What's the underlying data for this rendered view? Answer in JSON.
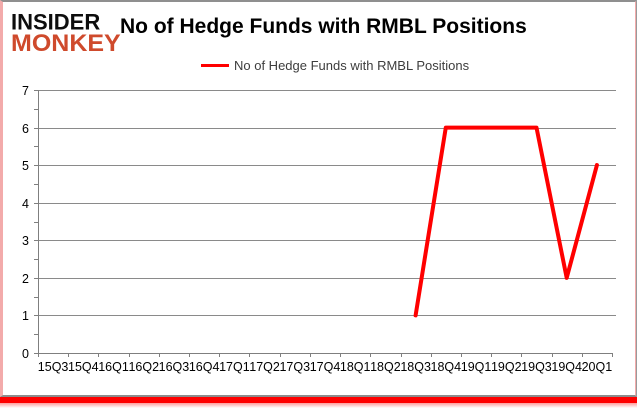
{
  "logo": {
    "line1": "INSIDER",
    "line2": "MONKEY"
  },
  "header": {
    "title": "No of Hedge Funds with RMBL Positions"
  },
  "legend": {
    "label": "No of Hedge Funds with RMBL Positions"
  },
  "colors": {
    "line": "#ff0000",
    "gridline": "#8a8a8a",
    "axis": "#7f7f7f",
    "monkey_red": "#cf4a2c",
    "bottom_bar_red": "#fe0000",
    "frame_pink": "#f3abab"
  },
  "chart_data": {
    "type": "line",
    "title": "No of Hedge Funds with RMBL Positions",
    "categories": [
      "15Q3",
      "15Q4",
      "16Q1",
      "16Q2",
      "16Q3",
      "16Q4",
      "17Q1",
      "17Q2",
      "17Q3",
      "17Q4",
      "18Q1",
      "18Q2",
      "18Q3",
      "18Q4",
      "19Q1",
      "19Q2",
      "19Q3",
      "19Q4",
      "20Q1"
    ],
    "series": [
      {
        "name": "No of Hedge Funds with RMBL Positions",
        "color": "#ff0000",
        "values": [
          null,
          null,
          null,
          null,
          null,
          null,
          null,
          null,
          null,
          null,
          null,
          null,
          1,
          6,
          6,
          6,
          6,
          2,
          5
        ]
      }
    ],
    "xlabel": "",
    "ylabel": "",
    "ylim": [
      0,
      7
    ],
    "ytick_step": 1,
    "ytick_minor_step": 0.5,
    "yticks": [
      0,
      1,
      2,
      3,
      4,
      5,
      6,
      7
    ],
    "grid": "horizontal",
    "legend_position": "top-center"
  }
}
